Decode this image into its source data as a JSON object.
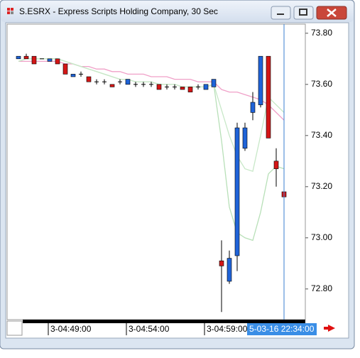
{
  "chart_data": {
    "type": "candlestick",
    "title": "S.ESRX - Express Scripts Holding Company, 30 Sec",
    "categories": [
      null,
      null,
      null,
      null,
      "3-04:49:00",
      null,
      null,
      null,
      null,
      null,
      null,
      null,
      null,
      null,
      "3-04:54:00",
      null,
      null,
      null,
      null,
      null,
      null,
      null,
      null,
      null,
      "3-04:59:00",
      null,
      null,
      null,
      null,
      null,
      null,
      null,
      null,
      null,
      null
    ],
    "open": [
      73.7,
      73.71,
      73.71,
      73.7,
      73.69,
      73.7,
      73.68,
      73.63,
      73.64,
      73.63,
      73.61,
      73.61,
      73.6,
      73.61,
      73.6,
      73.6,
      73.6,
      73.6,
      73.6,
      73.59,
      73.59,
      73.59,
      73.59,
      73.59,
      73.58,
      73.59,
      72.91,
      72.83,
      72.93,
      73.35,
      73.49,
      73.52,
      73.71,
      73.3,
      73.18
    ],
    "high": [
      73.71,
      73.72,
      73.71,
      73.7,
      73.7,
      73.7,
      73.68,
      73.64,
      73.65,
      73.63,
      73.62,
      73.62,
      73.6,
      73.62,
      73.62,
      73.61,
      73.61,
      73.61,
      73.6,
      73.6,
      73.6,
      73.59,
      73.59,
      73.6,
      73.6,
      73.62,
      72.99,
      72.95,
      73.45,
      73.45,
      73.57,
      73.71,
      73.71,
      73.35,
      73.22
    ],
    "low": [
      73.7,
      73.7,
      73.68,
      73.7,
      73.69,
      73.68,
      73.64,
      73.63,
      73.63,
      73.61,
      73.6,
      73.6,
      73.59,
      73.6,
      73.6,
      73.59,
      73.59,
      73.59,
      73.58,
      73.58,
      73.58,
      73.58,
      73.57,
      73.58,
      73.58,
      73.59,
      72.71,
      72.82,
      72.87,
      73.34,
      73.46,
      73.51,
      73.39,
      73.2,
      73.11
    ],
    "close": [
      73.71,
      73.7,
      73.68,
      73.7,
      73.7,
      73.68,
      73.64,
      73.64,
      73.64,
      73.61,
      73.61,
      73.61,
      73.59,
      73.61,
      73.62,
      73.6,
      73.6,
      73.6,
      73.58,
      73.59,
      73.59,
      73.58,
      73.57,
      73.59,
      73.6,
      73.62,
      72.89,
      72.92,
      73.43,
      73.43,
      73.53,
      73.71,
      73.39,
      73.27,
      73.16
    ],
    "up_color": "#1f63d8",
    "down_color": "#d41616",
    "series": [
      {
        "color": "#f0a0c8",
        "values": [
          73.69,
          73.69,
          73.69,
          73.69,
          73.69,
          73.69,
          73.68,
          73.68,
          73.67,
          73.67,
          73.66,
          73.66,
          73.65,
          73.65,
          73.64,
          73.64,
          73.64,
          73.63,
          73.63,
          73.63,
          73.62,
          73.62,
          73.62,
          73.61,
          73.61,
          73.61,
          73.58,
          73.57,
          73.57,
          73.56,
          73.55,
          73.54,
          73.52,
          73.49,
          73.46
        ]
      },
      {
        "color": "#b8e0b8",
        "values": [
          73.69,
          73.7,
          73.7,
          73.7,
          73.7,
          73.7,
          73.69,
          73.68,
          73.67,
          73.66,
          73.65,
          73.64,
          73.63,
          73.62,
          73.62,
          73.61,
          73.61,
          73.61,
          73.6,
          73.6,
          73.6,
          73.59,
          73.59,
          73.59,
          73.59,
          73.6,
          73.38,
          73.12,
          73.02,
          73.0,
          72.99,
          73.1,
          73.25,
          73.28,
          73.27
        ]
      },
      {
        "color": "#c8e8c8",
        "values": [
          73.69,
          73.7,
          73.7,
          73.7,
          73.7,
          73.7,
          73.69,
          73.68,
          73.67,
          73.66,
          73.65,
          73.64,
          73.63,
          73.62,
          73.62,
          73.61,
          73.61,
          73.61,
          73.6,
          73.6,
          73.6,
          73.59,
          73.59,
          73.59,
          73.59,
          73.6,
          73.5,
          73.4,
          73.32,
          73.27,
          73.26,
          73.4,
          73.55,
          73.52,
          73.49
        ]
      }
    ],
    "ylim": [
      72.68,
      73.83
    ],
    "yticks": [
      {
        "value": 72.8,
        "label": "72.80"
      },
      {
        "value": 73.0,
        "label": "73.00"
      },
      {
        "value": 73.2,
        "label": "73.20"
      },
      {
        "value": 73.4,
        "label": "73.40"
      },
      {
        "value": 73.6,
        "label": "73.60"
      },
      {
        "value": 73.8,
        "label": "73.80"
      }
    ],
    "cursor_label": "5-03-16 22:34:00"
  }
}
